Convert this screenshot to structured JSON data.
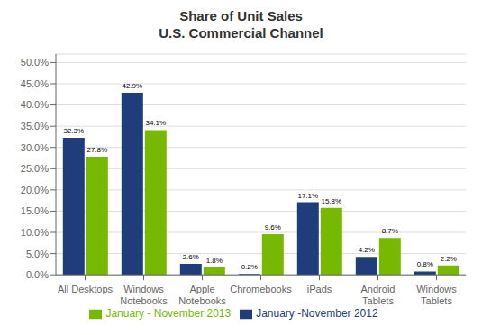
{
  "chart_data": {
    "type": "bar",
    "title": "Share of Unit Sales",
    "subtitle": "U.S. Commercial Channel",
    "categories": [
      "All Desktops",
      "Windows\nNotebooks",
      "Apple\nNotebooks",
      "Chromebooks",
      "iPads",
      "Android\nTablets",
      "Windows\nTablets"
    ],
    "series": [
      {
        "name": "January -November 2012",
        "color": "#1F3D7A",
        "values": [
          32.3,
          42.9,
          2.6,
          0.2,
          17.1,
          4.2,
          0.8
        ],
        "value_labels": [
          "32.3%",
          "42.9%",
          "2.6%",
          "0.2%",
          "17.1%",
          "4.2%",
          "0.8%"
        ]
      },
      {
        "name": "January - November 2013",
        "color": "#76B900",
        "values": [
          27.8,
          34.1,
          1.8,
          9.6,
          15.8,
          8.7,
          2.2
        ],
        "value_labels": [
          "27.8%",
          "34.1%",
          "1.8%",
          "9.6%",
          "15.8%",
          "8.7%",
          "2.2%"
        ]
      }
    ],
    "ylim": [
      0,
      52
    ],
    "yticks": [
      {
        "value": 0,
        "label": "0.0%"
      },
      {
        "value": 5,
        "label": "5.0%"
      },
      {
        "value": 10,
        "label": "10.0%"
      },
      {
        "value": 15,
        "label": "15.0%"
      },
      {
        "value": 20,
        "label": "20.0%"
      },
      {
        "value": 25,
        "label": "25.0%"
      },
      {
        "value": 30,
        "label": "30.0%"
      },
      {
        "value": 35,
        "label": "35.0%"
      },
      {
        "value": 40,
        "label": "40.0%"
      },
      {
        "value": 45,
        "label": "45.0%"
      },
      {
        "value": 50,
        "label": "50.0%"
      }
    ],
    "grid": true,
    "legend": "bottom",
    "data_labels": true
  }
}
